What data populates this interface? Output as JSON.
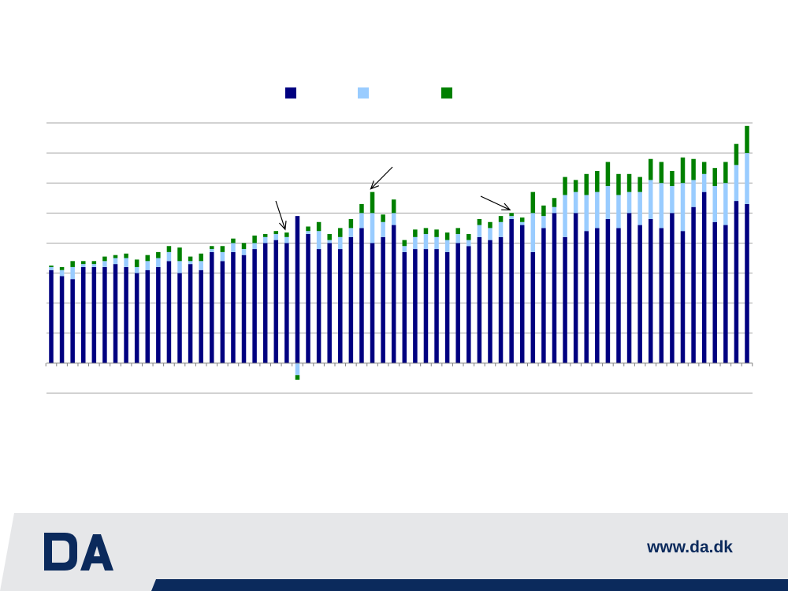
{
  "footer": {
    "url": "www.da.dk"
  },
  "logo": {
    "name": "da-logo"
  },
  "colors": {
    "series1": "#000080",
    "series2": "#99ccff",
    "series3": "#008000",
    "grid": "#a6a6a6",
    "footer_bg": "#e6e7e9",
    "footer_band": "#0b2a5c"
  },
  "chart_data": {
    "type": "bar",
    "stacked": true,
    "grid": true,
    "legend_position": "top",
    "ylim": [
      -1,
      8
    ],
    "categories_count": 66,
    "series": [
      {
        "values": [
          3.1,
          2.9,
          2.8,
          3.2,
          3.2,
          3.2,
          3.3,
          3.2,
          3.0,
          3.1,
          3.2,
          3.4,
          3.0,
          3.3,
          3.1,
          3.7,
          3.4,
          3.7,
          3.6,
          3.8,
          4.0,
          4.1,
          4.0,
          4.9,
          4.3,
          3.8,
          4.0,
          3.8,
          4.2,
          4.5,
          4.0,
          4.2,
          4.6,
          3.7,
          3.8,
          3.8,
          3.8,
          3.7,
          4.0,
          3.9,
          4.2,
          4.1,
          4.2,
          4.8,
          4.6,
          3.7,
          4.5,
          5.0,
          4.2,
          5.0,
          4.4,
          4.5,
          4.8,
          4.5,
          5.0,
          4.6,
          4.8,
          4.5,
          5.0,
          4.4,
          5.2,
          5.7,
          4.7,
          4.6,
          5.4,
          5.3
        ]
      },
      {
        "values": [
          0.1,
          0.2,
          0.4,
          0.1,
          0.1,
          0.2,
          0.2,
          0.3,
          0.2,
          0.3,
          0.3,
          0.3,
          0.4,
          0.1,
          0.3,
          0.1,
          0.3,
          0.3,
          0.2,
          0.2,
          0.2,
          0.2,
          0.2,
          -0.4,
          0.1,
          0.6,
          0.1,
          0.4,
          0.3,
          0.5,
          1.0,
          0.5,
          0.4,
          0.2,
          0.4,
          0.5,
          0.4,
          0.4,
          0.3,
          0.2,
          0.4,
          0.4,
          0.5,
          0.1,
          0.1,
          1.3,
          0.4,
          0.2,
          1.4,
          0.7,
          1.2,
          1.2,
          1.1,
          1.1,
          0.7,
          1.1,
          1.3,
          1.5,
          0.9,
          1.6,
          0.9,
          0.6,
          1.2,
          1.4,
          1.2,
          1.7
        ]
      },
      {
        "values": [
          0.05,
          0.1,
          0.2,
          0.1,
          0.1,
          0.15,
          0.1,
          0.15,
          0.25,
          0.2,
          0.2,
          0.2,
          0.45,
          0.15,
          0.25,
          0.1,
          0.2,
          0.15,
          0.2,
          0.25,
          0.1,
          0.1,
          0.15,
          -0.15,
          0.15,
          0.3,
          0.2,
          0.3,
          0.3,
          0.3,
          0.7,
          0.25,
          0.45,
          0.2,
          0.25,
          0.2,
          0.25,
          0.25,
          0.2,
          0.2,
          0.2,
          0.2,
          0.2,
          0.1,
          0.15,
          0.7,
          0.35,
          0.3,
          0.6,
          0.4,
          0.7,
          0.7,
          0.8,
          0.7,
          0.6,
          0.5,
          0.7,
          0.7,
          0.5,
          0.85,
          0.7,
          0.4,
          0.6,
          0.7,
          0.7,
          0.9
        ]
      }
    ],
    "annotations": [
      {
        "type": "arrow",
        "target_index": 22
      },
      {
        "type": "arrow",
        "target_index": 30
      },
      {
        "type": "arrow",
        "target_index": 43
      }
    ]
  }
}
